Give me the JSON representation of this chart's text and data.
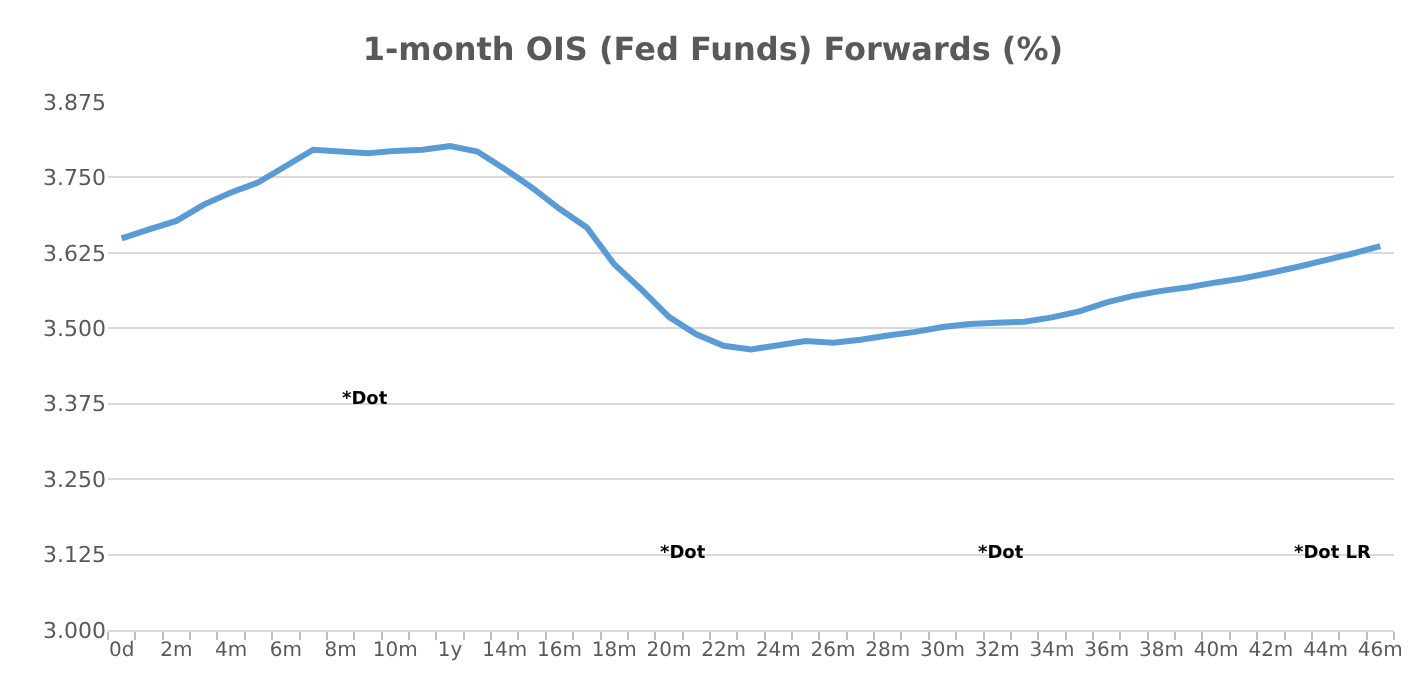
{
  "chart_data": {
    "type": "line",
    "title": "1-month OIS (Fed Funds) Forwards (%)",
    "categories": [
      "0d",
      null,
      "2m",
      null,
      "4m",
      null,
      "6m",
      null,
      "8m",
      null,
      "10m",
      null,
      "1y",
      null,
      "14m",
      null,
      "16m",
      null,
      "18m",
      null,
      "20m",
      null,
      "22m",
      null,
      "24m",
      null,
      "26m",
      null,
      "28m",
      null,
      "30m",
      null,
      "32m",
      null,
      "34m",
      null,
      "36m",
      null,
      "38m",
      null,
      "40m",
      null,
      "42m",
      null,
      "44m",
      null,
      "46m"
    ],
    "series": [
      {
        "color": "#5b9bd5",
        "values": [
          3.649,
          3.664,
          3.678,
          3.705,
          3.725,
          3.742,
          3.769,
          3.796,
          3.793,
          3.79,
          3.794,
          3.796,
          3.802,
          3.793,
          3.764,
          3.733,
          3.698,
          3.667,
          3.606,
          3.564,
          3.519,
          3.49,
          3.471,
          3.465,
          3.472,
          3.479,
          3.476,
          3.481,
          3.488,
          3.494,
          3.502,
          3.507,
          3.509,
          3.511,
          3.518,
          3.528,
          3.543,
          3.554,
          3.562,
          3.568,
          3.576,
          3.583,
          3.592,
          3.602,
          3.613,
          3.624,
          3.636
        ]
      }
    ],
    "ylim": [
      3.0,
      3.875
    ],
    "yticks": [
      {
        "value": 3.0,
        "label": "3.000"
      },
      {
        "value": 3.125,
        "label": "3.125"
      },
      {
        "value": 3.25,
        "label": "3.250"
      },
      {
        "value": 3.375,
        "label": "3.375"
      },
      {
        "value": 3.5,
        "label": "3.500"
      },
      {
        "value": 3.625,
        "label": "3.625"
      },
      {
        "value": 3.75,
        "label": "3.750"
      },
      {
        "value": 3.875,
        "label": "3.875"
      }
    ],
    "annotations": [
      "*Dot",
      "*Dot",
      "*Dot",
      "*Dot LR"
    ],
    "grid": "y",
    "marker": "none",
    "line_style": "solid"
  }
}
